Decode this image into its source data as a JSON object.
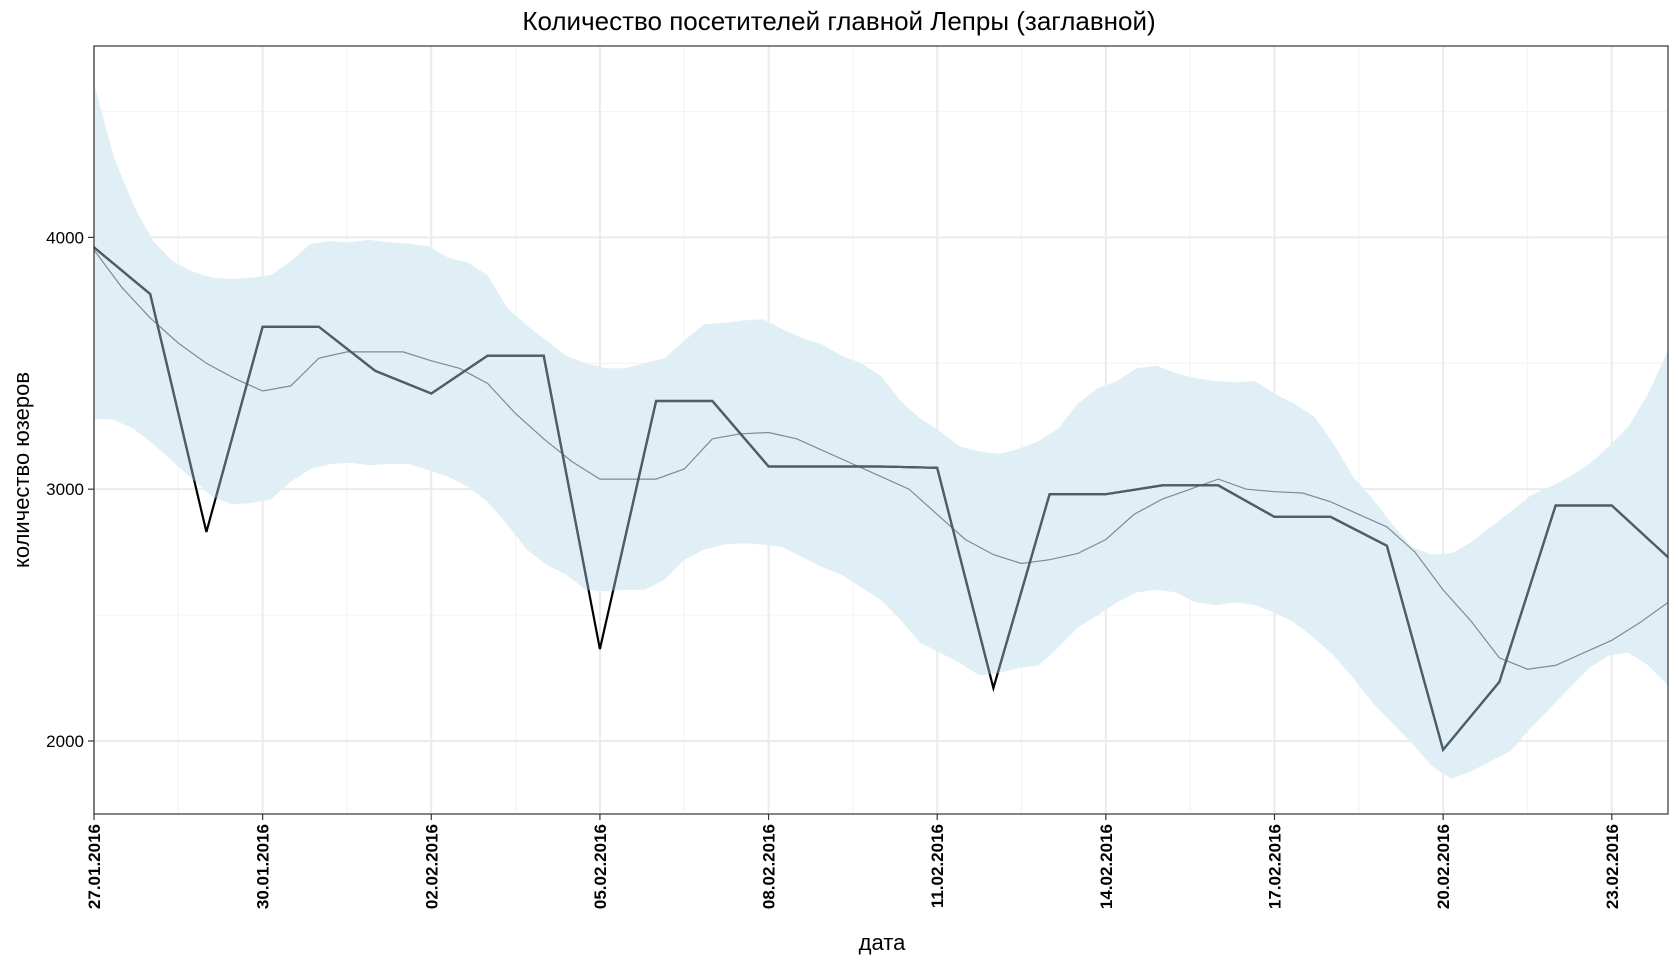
{
  "chart_data": {
    "type": "line",
    "title": "Количество посетителей главной Лепры (заглавной)",
    "xlabel": "дата",
    "ylabel": "количество юзеров",
    "x_range": [
      "27.01.2016",
      "24.02.2016"
    ],
    "ylim": [
      1710,
      4760
    ],
    "y_ticks": [
      2000,
      3000,
      4000
    ],
    "x_tick_labels": [
      "27.01.2016",
      "30.01.2016",
      "02.02.2016",
      "05.02.2016",
      "08.02.2016",
      "11.02.2016",
      "14.02.2016",
      "17.02.2016",
      "20.02.2016",
      "23.02.2016"
    ],
    "grid": true,
    "legend": "none",
    "colors": {
      "band": "#e0eff5",
      "observed_line": "#4d5f6b",
      "observed_below_band": "#000000",
      "smooth_line": "#7f8b93",
      "grid": "#ebebeb",
      "panel_border": "#333333"
    },
    "series": [
      {
        "values": [
          [
            "27.01.2016",
            3960
          ],
          [
            "28.01.2016",
            3775
          ],
          [
            "29.01.2016",
            2830
          ],
          [
            "30.01.2016",
            3645
          ],
          [
            "31.01.2016",
            3645
          ],
          [
            "01.02.2016",
            3470
          ],
          [
            "02.02.2016",
            3380
          ],
          [
            "03.02.2016",
            3530
          ],
          [
            "04.02.2016",
            3530
          ],
          [
            "05.02.2016",
            2365
          ],
          [
            "06.02.2016",
            3350
          ],
          [
            "07.02.2016",
            3350
          ],
          [
            "08.02.2016",
            3090
          ],
          [
            "09.02.2016",
            3090
          ],
          [
            "10.02.2016",
            3090
          ],
          [
            "11.02.2016",
            3085
          ],
          [
            "12.02.2016",
            2210
          ],
          [
            "13.02.2016",
            2980
          ],
          [
            "14.02.2016",
            2980
          ],
          [
            "15.02.2016",
            3015
          ],
          [
            "16.02.2016",
            3015
          ],
          [
            "17.02.2016",
            2890
          ],
          [
            "18.02.2016",
            2890
          ],
          [
            "19.02.2016",
            2775
          ],
          [
            "20.02.2016",
            1965
          ],
          [
            "21.02.2016",
            2235
          ],
          [
            "22.02.2016",
            2935
          ],
          [
            "23.02.2016",
            2935
          ],
          [
            "24.02.2016",
            2730
          ]
        ]
      },
      {
        "values": [
          [
            "27.01.2016",
            3950
          ],
          [
            "27.01.2016 12:00",
            3800
          ],
          [
            "28.01.2016",
            3680
          ],
          [
            "28.01.2016 12:00",
            3580
          ],
          [
            "29.01.2016",
            3500
          ],
          [
            "29.01.2016 12:00",
            3440
          ],
          [
            "30.01.2016",
            3390
          ],
          [
            "30.01.2016 12:00",
            3410
          ],
          [
            "31.01.2016",
            3520
          ],
          [
            "31.01.2016 12:00",
            3545
          ],
          [
            "01.02.2016",
            3545
          ],
          [
            "01.02.2016 12:00",
            3545
          ],
          [
            "02.02.2016",
            3510
          ],
          [
            "02.02.2016 12:00",
            3480
          ],
          [
            "03.02.2016",
            3420
          ],
          [
            "03.02.2016 12:00",
            3300
          ],
          [
            "04.02.2016",
            3200
          ],
          [
            "04.02.2016 12:00",
            3110
          ],
          [
            "05.02.2016",
            3040
          ],
          [
            "05.02.2016 12:00",
            3040
          ],
          [
            "06.02.2016",
            3040
          ],
          [
            "06.02.2016 12:00",
            3080
          ],
          [
            "07.02.2016",
            3200
          ],
          [
            "07.02.2016 12:00",
            3220
          ],
          [
            "08.02.2016",
            3225
          ],
          [
            "08.02.2016 12:00",
            3200
          ],
          [
            "09.02.2016",
            3150
          ],
          [
            "09.02.2016 12:00",
            3100
          ],
          [
            "10.02.2016",
            3050
          ],
          [
            "10.02.2016 12:00",
            3000
          ],
          [
            "11.02.2016",
            2900
          ],
          [
            "11.02.2016 12:00",
            2800
          ],
          [
            "12.02.2016",
            2740
          ],
          [
            "12.02.2016 12:00",
            2705
          ],
          [
            "13.02.2016",
            2720
          ],
          [
            "13.02.2016 12:00",
            2745
          ],
          [
            "14.02.2016",
            2800
          ],
          [
            "14.02.2016 12:00",
            2900
          ],
          [
            "15.02.2016",
            2960
          ],
          [
            "15.02.2016 12:00",
            3000
          ],
          [
            "16.02.2016",
            3040
          ],
          [
            "16.02.2016 12:00",
            3000
          ],
          [
            "17.02.2016",
            2990
          ],
          [
            "17.02.2016 12:00",
            2985
          ],
          [
            "18.02.2016",
            2950
          ],
          [
            "18.02.2016 12:00",
            2900
          ],
          [
            "19.02.2016",
            2850
          ],
          [
            "19.02.2016 12:00",
            2750
          ],
          [
            "20.02.2016",
            2600
          ],
          [
            "20.02.2016 12:00",
            2475
          ],
          [
            "21.02.2016",
            2330
          ],
          [
            "21.02.2016 12:00",
            2285
          ],
          [
            "22.02.2016",
            2300
          ],
          [
            "22.02.2016 12:00",
            2350
          ],
          [
            "23.02.2016",
            2400
          ],
          [
            "23.02.2016 12:00",
            2470
          ],
          [
            "24.02.2016",
            2550
          ]
        ]
      },
      {
        "name": "",
        "upper": [
          4610,
          4320,
          4130,
          3985,
          3905,
          3865,
          3840,
          3835,
          3840,
          3850,
          3905,
          3975,
          3985,
          3980,
          3990,
          3980,
          3975,
          3965,
          3920,
          3900,
          3850,
          3720,
          3650,
          3590,
          3530,
          3500,
          3480,
          3480,
          3500,
          3520,
          3590,
          3655,
          3660,
          3670,
          3675,
          3635,
          3600,
          3575,
          3530,
          3500,
          3450,
          3350,
          3280,
          3230,
          3170,
          3150,
          3140,
          3160,
          3190,
          3240,
          3340,
          3400,
          3430,
          3480,
          3490,
          3460,
          3440,
          3430,
          3425,
          3430,
          3380,
          3340,
          3290,
          3180,
          3050,
          2960,
          2860,
          2770,
          2740,
          2745,
          2790,
          2850,
          2910,
          2975,
          3010,
          3050,
          3100,
          3170,
          3250,
          3380,
          3550
        ],
        "lower": [
          3280,
          3275,
          3240,
          3180,
          3110,
          3040,
          2970,
          2940,
          2945,
          2960,
          3030,
          3080,
          3100,
          3105,
          3095,
          3100,
          3100,
          3075,
          3050,
          3010,
          2950,
          2860,
          2760,
          2700,
          2660,
          2600,
          2595,
          2600,
          2600,
          2640,
          2720,
          2760,
          2780,
          2785,
          2780,
          2770,
          2730,
          2690,
          2660,
          2610,
          2560,
          2480,
          2390,
          2350,
          2310,
          2260,
          2270,
          2290,
          2300,
          2370,
          2450,
          2500,
          2550,
          2590,
          2600,
          2590,
          2550,
          2540,
          2550,
          2540,
          2510,
          2470,
          2410,
          2340,
          2250,
          2150,
          2070,
          1990,
          1900,
          1850,
          1880,
          1920,
          1960,
          2050,
          2130,
          2210,
          2290,
          2340,
          2350,
          2300,
          2220
        ]
      }
    ]
  }
}
